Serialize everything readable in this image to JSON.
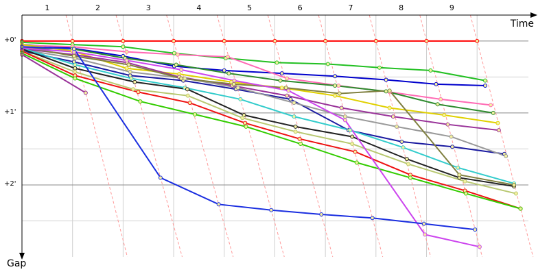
{
  "chart_data": {
    "type": "line",
    "x_label": "Time",
    "y_label": "Gap",
    "xlim": [
      0,
      10.3
    ],
    "ylim": [
      -0.36,
      3.0
    ],
    "xticks": [
      {
        "value": 0.5,
        "label": "1"
      },
      {
        "value": 1.5,
        "label": "2"
      },
      {
        "value": 2.5,
        "label": "3"
      },
      {
        "value": 3.5,
        "label": "4"
      },
      {
        "value": 4.5,
        "label": "5"
      },
      {
        "value": 5.5,
        "label": "6"
      },
      {
        "value": 6.5,
        "label": "7"
      },
      {
        "value": 7.5,
        "label": "8"
      },
      {
        "value": 8.5,
        "label": "9"
      }
    ],
    "lap_gridlines": [
      1,
      2,
      3,
      4,
      5,
      6,
      7,
      8,
      9
    ],
    "yticks": [
      {
        "value": 0,
        "label": "+0'"
      },
      {
        "value": 1,
        "label": "+1'"
      },
      {
        "value": 2,
        "label": "+2'"
      }
    ],
    "minor_yticks": [
      0.5,
      1.5,
      2.5
    ],
    "grid": true,
    "lap_lines": true,
    "series": [
      {
        "color": "#ff0000",
        "x": [
          0,
          1,
          2,
          3,
          4,
          5,
          6,
          7,
          8,
          9
        ],
        "values": [
          0,
          0,
          0,
          0,
          0,
          0,
          0,
          0,
          0,
          0
        ]
      },
      {
        "color": "#22c022",
        "x": [
          0,
          1,
          2,
          3.01,
          4.03,
          5.04,
          6.05,
          7.07,
          8.08,
          9.16
        ],
        "values": [
          0.02,
          0.05,
          0.08,
          0.17,
          0.24,
          0.3,
          0.32,
          0.37,
          0.41,
          0.55
        ]
      },
      {
        "color": "#0000cc",
        "x": [
          0,
          1,
          2,
          3.01,
          4,
          5.14,
          6.19,
          7.2,
          8.19,
          9.16
        ],
        "values": [
          0.05,
          0.1,
          0.21,
          0.35,
          0.41,
          0.45,
          0.49,
          0.54,
          0.6,
          0.62
        ]
      },
      {
        "color": "#ff69b4",
        "x": [
          0,
          1,
          2.07,
          3.08,
          4.07,
          5.24,
          6.26,
          7.27,
          8.28,
          9.27
        ],
        "values": [
          0.06,
          0.08,
          0.15,
          0.19,
          0.22,
          0.52,
          0.62,
          0.71,
          0.81,
          0.89
        ]
      },
      {
        "color": "#2e8b2e",
        "x": [
          0,
          1,
          2.04,
          3.05,
          4.09,
          5.11,
          6.19,
          7.2,
          8.22,
          9.32
        ],
        "values": [
          0.1,
          0.11,
          0.24,
          0.33,
          0.45,
          0.55,
          0.62,
          0.7,
          0.88,
          1
        ]
      },
      {
        "color": "#e0d000",
        "x": [
          0,
          1,
          2.07,
          3.11,
          4.14,
          5.14,
          6.19,
          7.27,
          8.35,
          9.41
        ],
        "values": [
          0.05,
          0.14,
          0.38,
          0.46,
          0.57,
          0.65,
          0.76,
          0.93,
          1.03,
          1.14
        ]
      },
      {
        "color": "#993399",
        "x": [
          0,
          1.03,
          2.08,
          3.11,
          4.16,
          5.24,
          6.32,
          7.34,
          8.42,
          9.43
        ],
        "values": [
          0.11,
          0.19,
          0.3,
          0.5,
          0.62,
          0.76,
          0.93,
          1.05,
          1.16,
          1.24
        ]
      },
      {
        "color": "#1a1aa0",
        "x": [
          0,
          1.03,
          2.14,
          3.19,
          4.23,
          5.31,
          6.46,
          7.51,
          8.51,
          9.54
        ],
        "values": [
          0.14,
          0.29,
          0.48,
          0.55,
          0.67,
          0.81,
          1.24,
          1.4,
          1.47,
          1.57
        ]
      },
      {
        "color": "#999999",
        "x": [
          0,
          1.05,
          2.14,
          3.22,
          4.27,
          5.38,
          6.39,
          7.41,
          8.49,
          9.57
        ],
        "values": [
          0.12,
          0.24,
          0.43,
          0.52,
          0.65,
          0.86,
          1.05,
          1.19,
          1.33,
          1.6
        ]
      },
      {
        "color": "#33cccc",
        "x": [
          0,
          1.05,
          2.16,
          3.22,
          4.32,
          5.38,
          6.49,
          7.54,
          8.62,
          9.73
        ],
        "values": [
          0.1,
          0.33,
          0.52,
          0.65,
          0.81,
          1.05,
          1.24,
          1.48,
          1.76,
          1.98
        ]
      },
      {
        "color": "#222222",
        "x": [
          0,
          1.05,
          2.23,
          3.27,
          4.39,
          5.41,
          6.53,
          7.61,
          8.65,
          9.73
        ],
        "values": [
          0.11,
          0.38,
          0.57,
          0.67,
          1.03,
          1.19,
          1.33,
          1.64,
          1.9,
          2.02
        ]
      },
      {
        "color": "#808040",
        "x": [
          0,
          1.03,
          2.11,
          3.15,
          4.19,
          5.22,
          6.28,
          7.27,
          8.65,
          9.73
        ],
        "values": [
          0.08,
          0.21,
          0.33,
          0.52,
          0.6,
          0.65,
          0.73,
          0.69,
          1.86,
          2
        ]
      },
      {
        "color": "#b8c870",
        "x": [
          0,
          1.05,
          2.2,
          3.28,
          4.36,
          5.41,
          6.53,
          7.64,
          8.76,
          9.77
        ],
        "values": [
          0.14,
          0.43,
          0.67,
          0.76,
          1.07,
          1.26,
          1.43,
          1.71,
          1.95,
          2.12
        ]
      },
      {
        "color": "#ee1111",
        "x": [
          0,
          1.05,
          2.3,
          3.32,
          4.41,
          5.49,
          6.59,
          7.68,
          8.76,
          9.86
        ],
        "values": [
          0.14,
          0.48,
          0.71,
          0.86,
          1.14,
          1.36,
          1.54,
          1.86,
          2.08,
          2.33
        ]
      },
      {
        "color": "#33cc00",
        "x": [
          0,
          1.05,
          2.34,
          3.42,
          4.43,
          5.51,
          6.62,
          7.68,
          8.78,
          9.86
        ],
        "values": [
          0.17,
          0.52,
          0.84,
          1.02,
          1.19,
          1.43,
          1.69,
          1.9,
          2.12,
          2.33
        ]
      },
      {
        "color": "#cc44ee",
        "x": [
          0,
          1.03,
          2.07,
          3.15,
          4.2,
          5.27,
          6.39,
          7.97,
          9.05
        ],
        "values": [
          0.1,
          0.15,
          0.27,
          0.4,
          0.55,
          0.69,
          1.1,
          2.69,
          2.86
        ]
      },
      {
        "color": "#1a2ee0",
        "x": [
          0,
          1.03,
          2.74,
          3.89,
          4.93,
          5.92,
          6.93,
          7.95,
          8.96
        ],
        "values": [
          0.08,
          0.11,
          1.9,
          2.27,
          2.35,
          2.41,
          2.46,
          2.54,
          2.62
        ]
      },
      {
        "color": "#993399",
        "x": [
          0,
          1.26
        ],
        "values": [
          0.19,
          0.72
        ]
      }
    ]
  }
}
